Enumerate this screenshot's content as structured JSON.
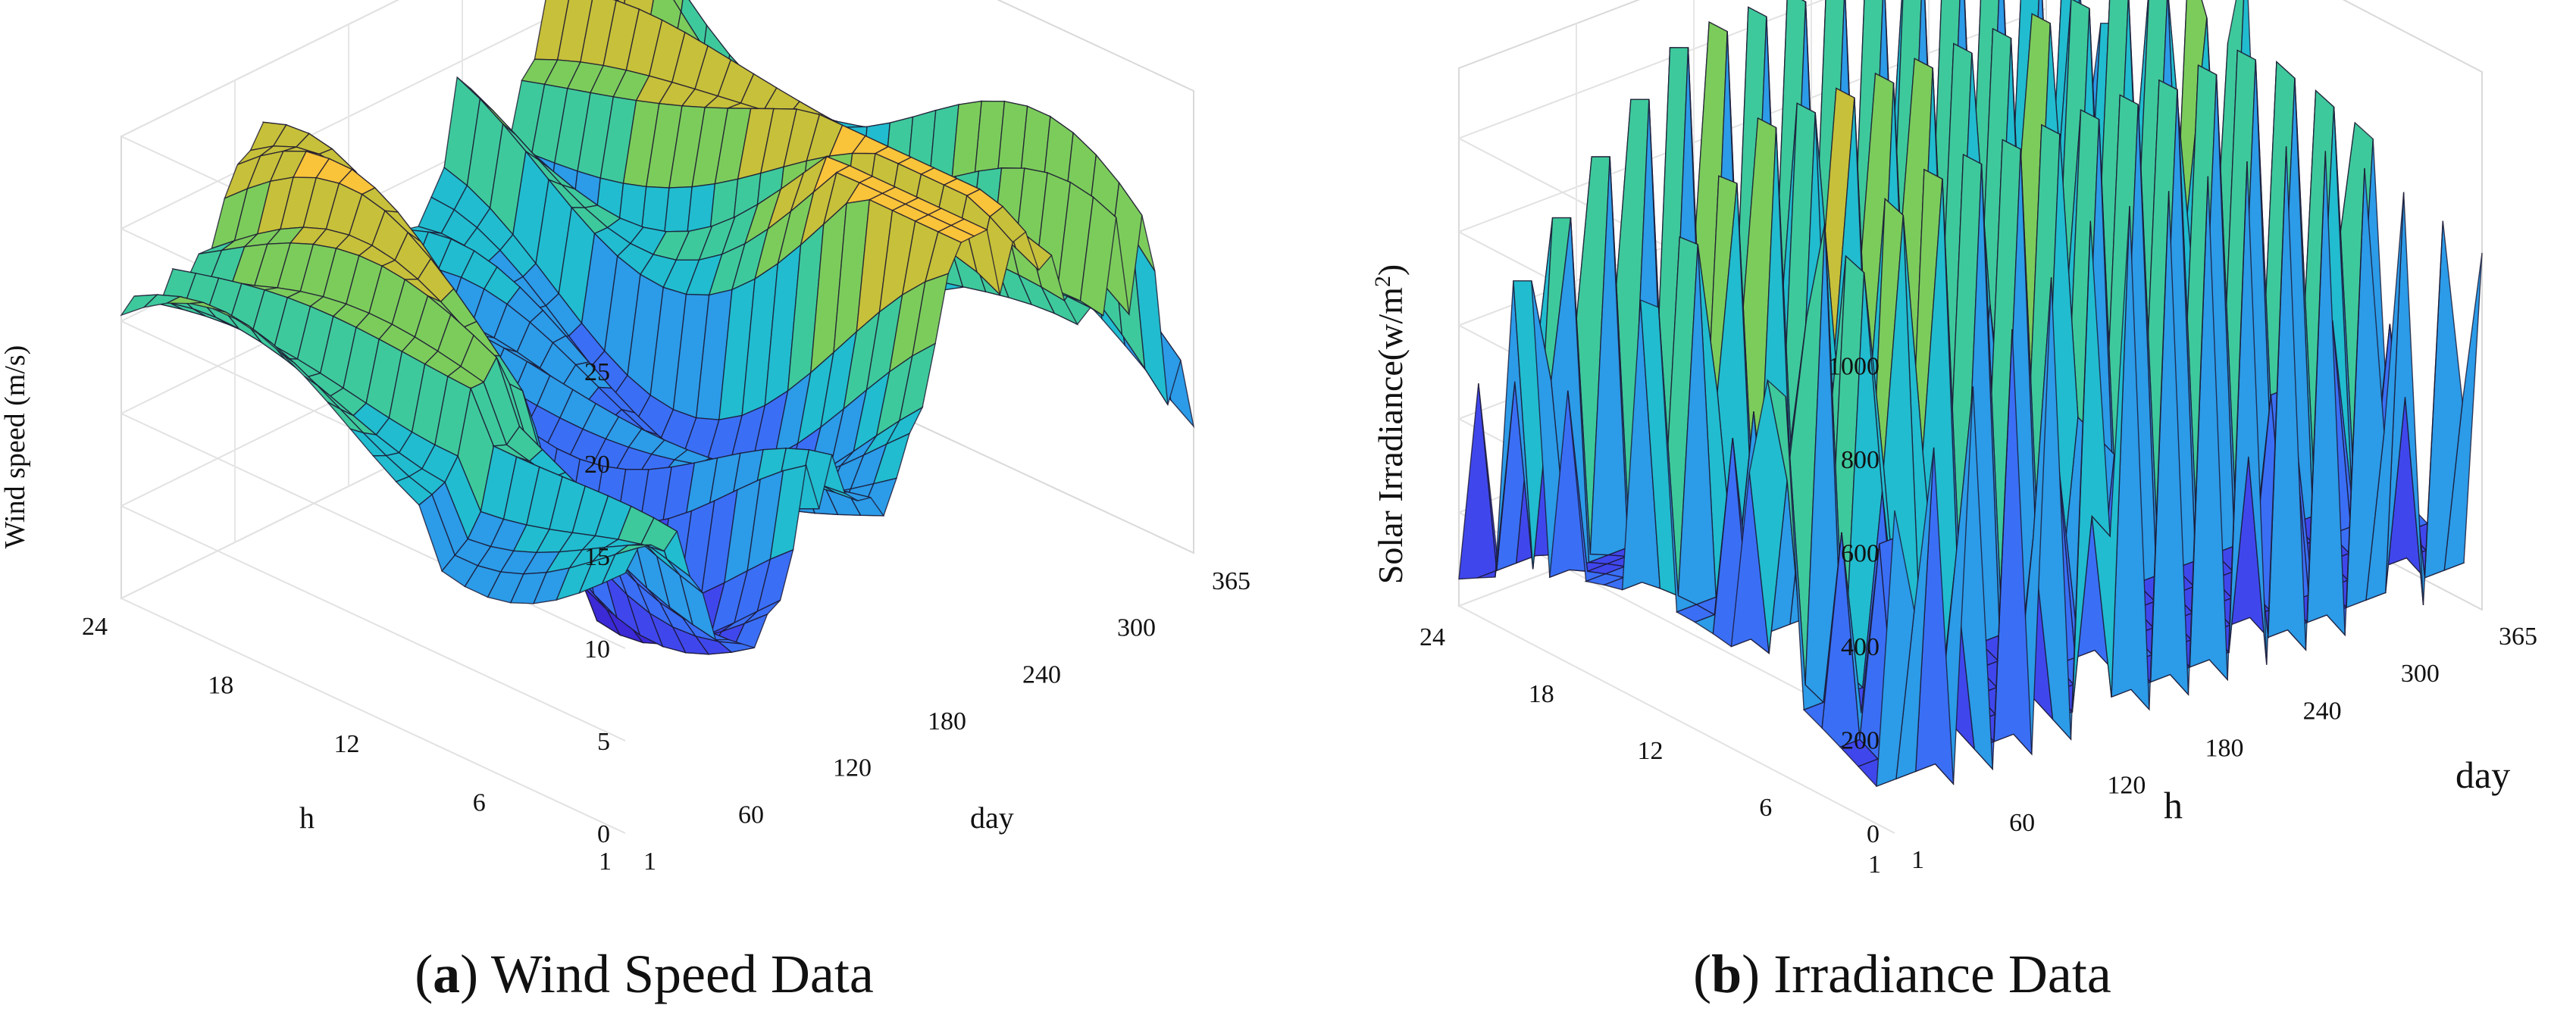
{
  "chart_data": [
    {
      "type": "surface3d",
      "title": "",
      "caption_letter": "a",
      "caption_text": "Wind Speed Data",
      "zlabel": "Wind speed (m/s)",
      "xlabel": "h",
      "ylabel": "day",
      "x_ticks": [
        "24",
        "18",
        "12",
        "6",
        "1"
      ],
      "y_ticks": [
        "1",
        "60",
        "120",
        "180",
        "240",
        "300",
        "365"
      ],
      "z_ticks": [
        "0",
        "5",
        "10",
        "15",
        "20",
        "25"
      ],
      "xlim": [
        1,
        24
      ],
      "ylim": [
        1,
        365
      ],
      "zlim": [
        0,
        25
      ],
      "value_range": [
        0,
        24
      ]
    },
    {
      "type": "surface3d",
      "title": "",
      "caption_letter": "b",
      "caption_text": "Irradiance Data",
      "zlabel": "Solar Irradiance(w/m",
      "zlabel_sup": "2",
      "zlabel_end": ")",
      "xlabel": "h",
      "ylabel": "day",
      "x_ticks": [
        "24",
        "18",
        "12",
        "6",
        "1"
      ],
      "y_ticks": [
        "1",
        "60",
        "120",
        "180",
        "240",
        "300",
        "365"
      ],
      "z_ticks": [
        "0",
        "200",
        "400",
        "600",
        "800",
        "1000"
      ],
      "xlim": [
        1,
        24
      ],
      "ylim": [
        1,
        365
      ],
      "zlim": [
        0,
        1150
      ],
      "value_range": [
        0,
        1150
      ]
    }
  ],
  "colormap": [
    "#3b2ad6",
    "#3f47ec",
    "#3a6ff5",
    "#2c9be8",
    "#21bccf",
    "#3ec99c",
    "#7ccc5c",
    "#c7c03a",
    "#f9c33a"
  ]
}
